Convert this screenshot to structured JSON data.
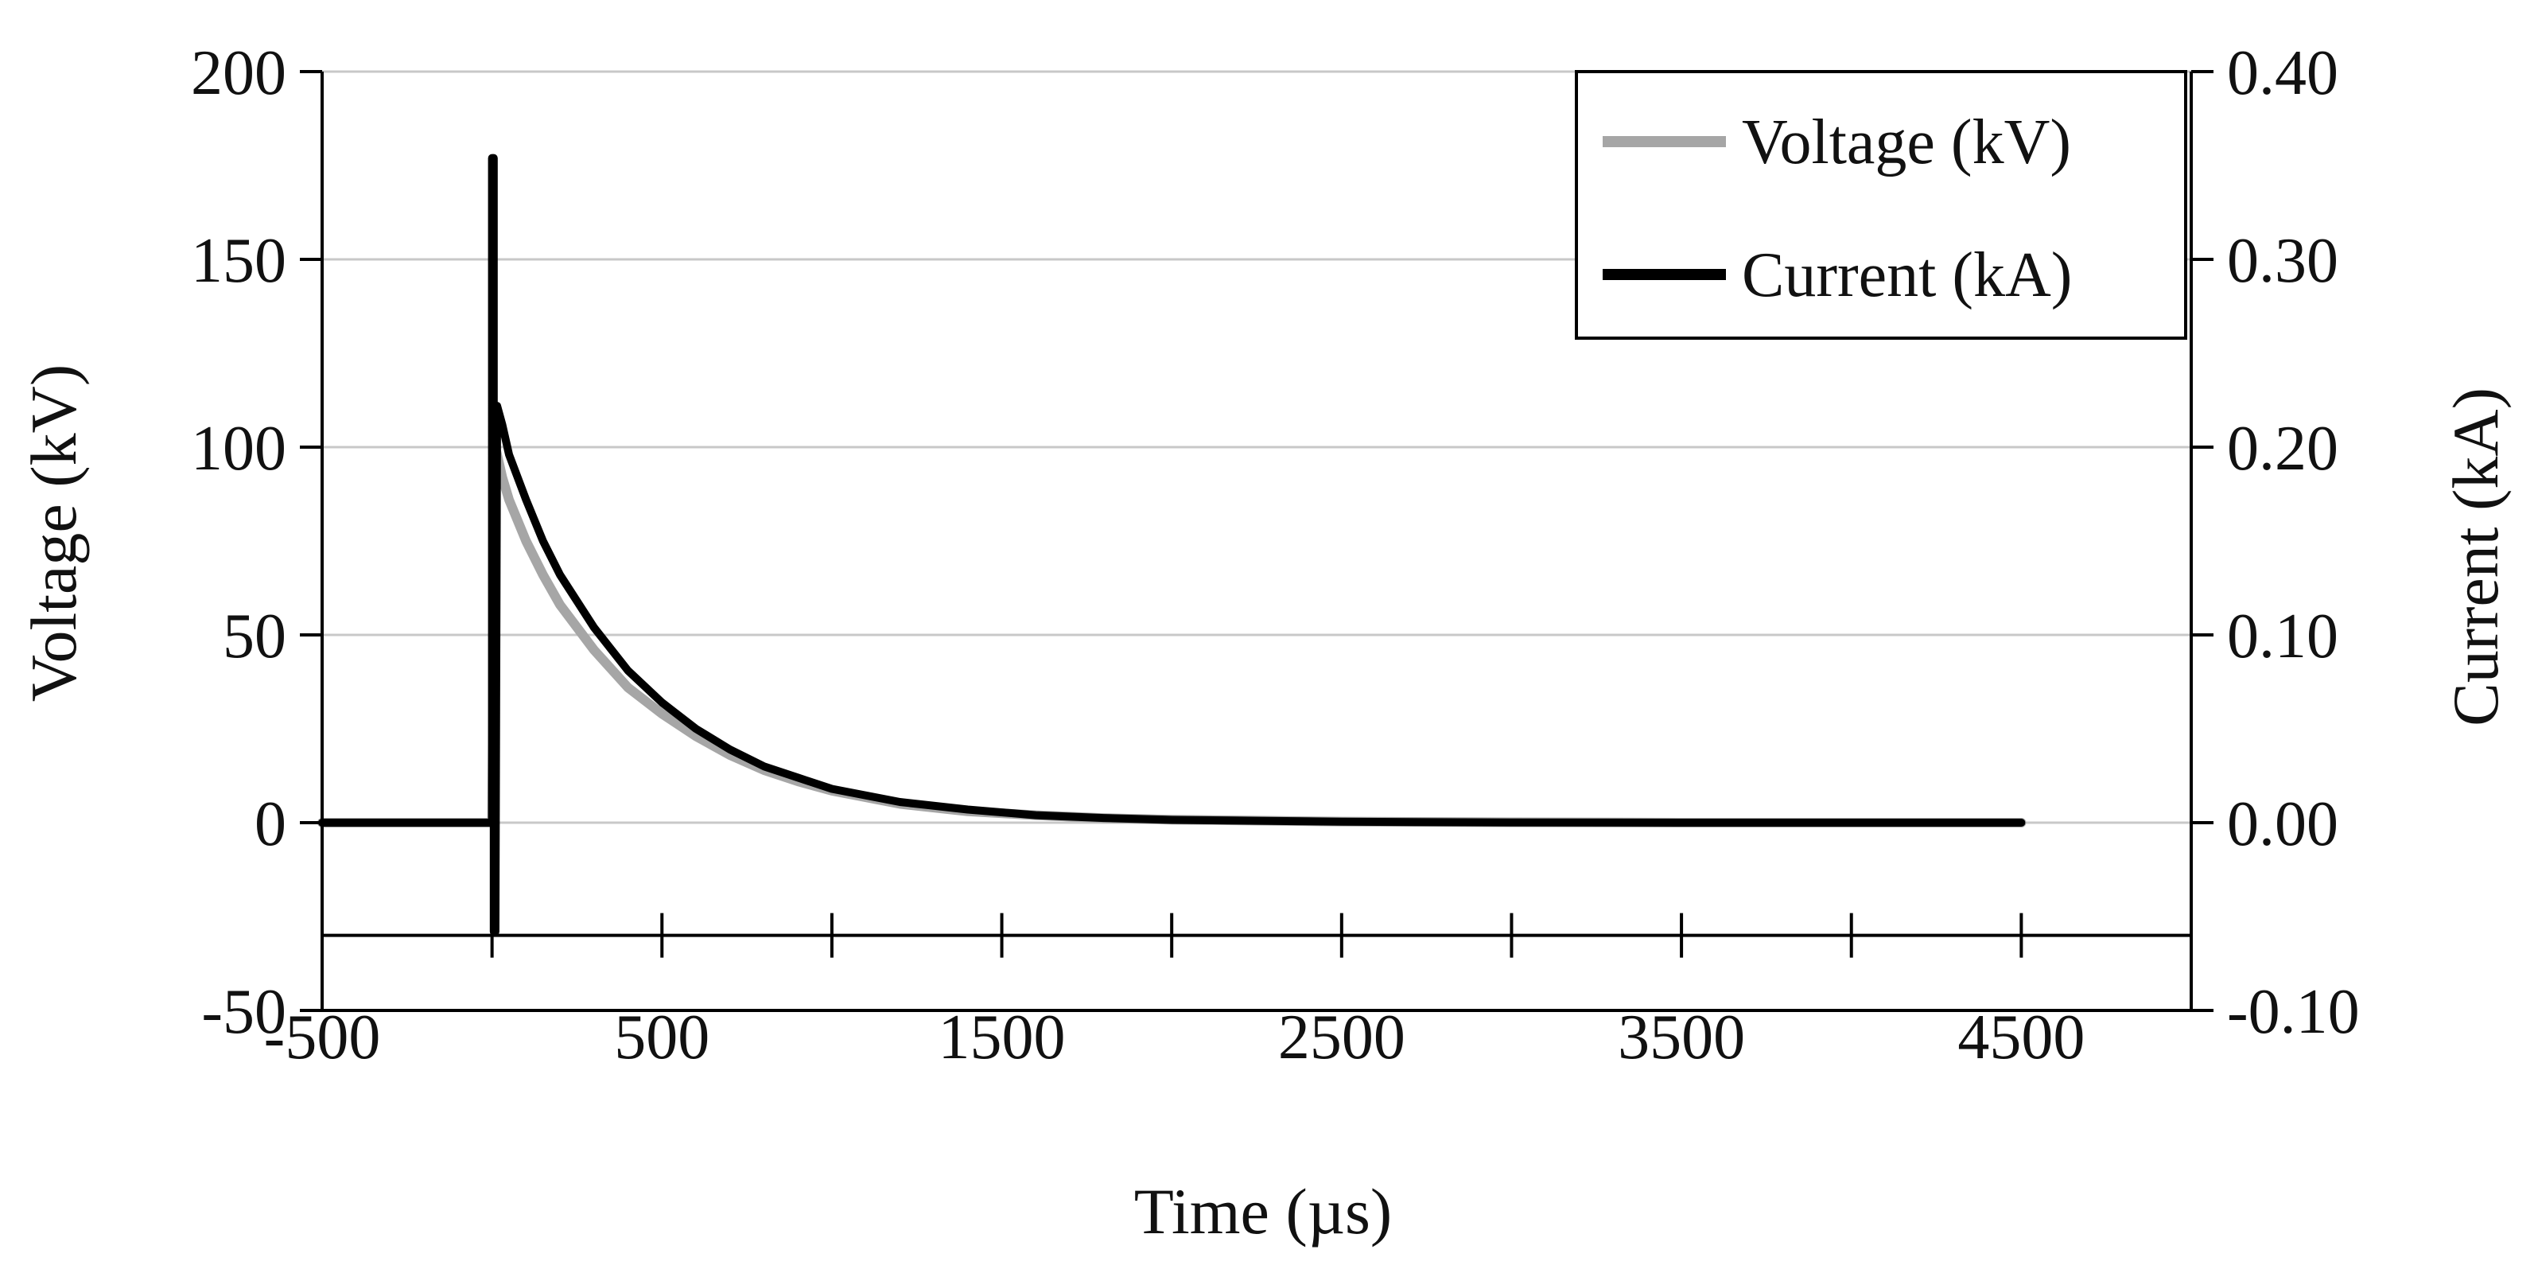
{
  "chart_data": {
    "type": "line",
    "title": "",
    "xlabel": "Time (µs)",
    "ylabel": "Voltage (kV)",
    "y2label": "Current (kA)",
    "xlim": [
      -500,
      5000
    ],
    "ylim": [
      -50,
      200
    ],
    "y2lim": [
      -0.1,
      0.4
    ],
    "x_ticks": [
      "-500",
      "500",
      "1500",
      "2500",
      "3500",
      "4500"
    ],
    "x_tick_values": [
      -500,
      500,
      1500,
      2500,
      3500,
      4500
    ],
    "y_ticks": [
      "-50",
      "0",
      "50",
      "100",
      "150",
      "200"
    ],
    "y_tick_values": [
      -50,
      0,
      50,
      100,
      150,
      200
    ],
    "y2_ticks": [
      "-0.10",
      "0.00",
      "0.10",
      "0.20",
      "0.30",
      "0.40"
    ],
    "y2_tick_values": [
      -0.1,
      0.0,
      0.1,
      0.2,
      0.3,
      0.4
    ],
    "grid": "horizontal",
    "legend_position": "top-right",
    "series": [
      {
        "name": "Voltage (kV)",
        "axis": "left",
        "color": "#a6a6a6",
        "x": [
          -500,
          -100,
          -10,
          0,
          10,
          30,
          50,
          100,
          150,
          200,
          300,
          400,
          500,
          600,
          700,
          800,
          900,
          1000,
          1200,
          1400,
          1600,
          1800,
          2000,
          2500,
          3000,
          3500,
          4000,
          4500
        ],
        "y": [
          0,
          0,
          0,
          0,
          100,
          92,
          86,
          75,
          66,
          58,
          46,
          36,
          29,
          23,
          18,
          14,
          11,
          8.5,
          5,
          3,
          2,
          1.2,
          0.8,
          0.3,
          0.1,
          0,
          0,
          0
        ]
      },
      {
        "name": "Current (kA)",
        "axis": "right",
        "color": "#000000",
        "x": [
          -500,
          -100,
          -10,
          0,
          0,
          5,
          5,
          10,
          15,
          30,
          50,
          100,
          150,
          200,
          300,
          400,
          500,
          600,
          700,
          800,
          900,
          1000,
          1200,
          1400,
          1600,
          1800,
          2000,
          2500,
          3000,
          3500,
          4000,
          4500
        ],
        "y": [
          0,
          0,
          0,
          0,
          0.354,
          0.354,
          -0.058,
          -0.058,
          0.222,
          0.212,
          0.196,
          0.172,
          0.15,
          0.132,
          0.104,
          0.081,
          0.064,
          0.05,
          0.039,
          0.03,
          0.024,
          0.018,
          0.011,
          0.007,
          0.004,
          0.0025,
          0.0015,
          0.0005,
          0.0001,
          0,
          0,
          0
        ]
      }
    ]
  }
}
